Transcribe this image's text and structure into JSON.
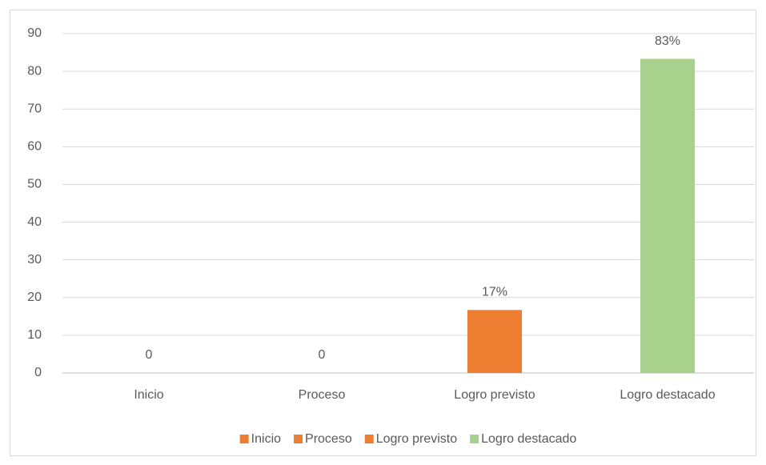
{
  "chart_data": {
    "type": "bar",
    "categories": [
      "Inicio",
      "Proceso",
      "Logro previsto",
      "Logro destacado"
    ],
    "series": [
      {
        "name": "Inicio",
        "color": "#ed7d31"
      },
      {
        "name": "Proceso",
        "color": "#ed7d31"
      },
      {
        "name": "Logro previsto",
        "color": "#ed7d31"
      },
      {
        "name": "Logro destacado",
        "color": "#a9d18e"
      }
    ],
    "values": [
      0,
      0,
      16.7,
      83.3
    ],
    "value_labels": [
      "0",
      "0",
      "17%",
      "83%"
    ],
    "colors": [
      "#ed7d31",
      "#ed7d31",
      "#ed7d31",
      "#a9d18e"
    ],
    "ylim": [
      0,
      90
    ],
    "yticks": [
      0,
      10,
      20,
      30,
      40,
      50,
      60,
      70,
      80,
      90
    ],
    "grid": true,
    "legend": "bottom"
  }
}
